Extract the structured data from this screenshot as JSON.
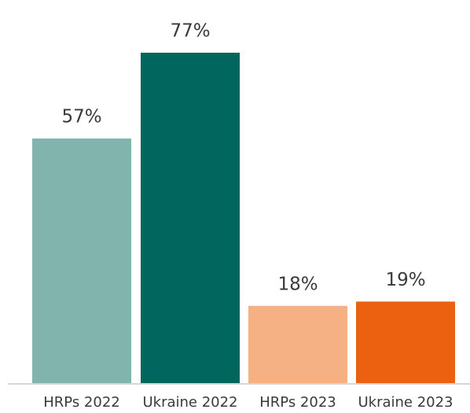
{
  "chart_data": {
    "type": "bar",
    "categories": [
      "HRPs 2022",
      "Ukraine 2022",
      "HRPs 2023",
      "Ukraine 2023"
    ],
    "values": [
      57,
      77,
      18,
      19
    ],
    "value_labels": [
      "57%",
      "77%",
      "18%",
      "19%"
    ],
    "colors": [
      "#82b4ae",
      "#00665e",
      "#f5b183",
      "#ec610f"
    ]
  }
}
